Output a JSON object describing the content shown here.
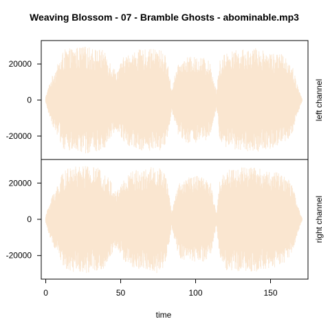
{
  "chart_data": {
    "type": "area",
    "title": "Weaving Blossom - 07 - Bramble Ghosts - abominable.mp3",
    "xlabel": "time",
    "xlim": [
      -3,
      175
    ],
    "x_ticks": [
      0,
      50,
      100,
      150
    ],
    "x_tick_labels": [
      "0",
      "50",
      "100",
      "150"
    ],
    "ylim": [
      -33000,
      33000
    ],
    "y_ticks": [
      20000,
      0,
      -20000
    ],
    "y_tick_labels": [
      "20000",
      "0",
      "-20000"
    ],
    "grid": false,
    "legend": "none",
    "colors": {
      "wave": "#fae6d0",
      "axis": "#000000"
    },
    "duration": 171,
    "panels": [
      {
        "name": "left channel",
        "envelope": {
          "t": [
            0,
            2,
            5,
            8,
            12,
            18,
            25,
            32,
            38,
            43,
            47,
            52,
            58,
            62,
            68,
            74,
            79,
            82,
            84,
            87,
            90,
            95,
            100,
            105,
            110,
            112,
            114,
            116,
            120,
            130,
            140,
            150,
            160,
            165,
            168,
            171
          ],
          "peak": [
            2000,
            8000,
            15000,
            20000,
            28000,
            29000,
            30000,
            29000,
            28000,
            22000,
            16000,
            24000,
            27000,
            28000,
            28000,
            29000,
            27000,
            18000,
            6000,
            17000,
            22000,
            24000,
            24000,
            24000,
            21000,
            12000,
            5000,
            22000,
            27000,
            28000,
            29000,
            27000,
            25000,
            18000,
            8000,
            1000
          ]
        }
      },
      {
        "name": "right channel",
        "envelope": {
          "t": [
            0,
            2,
            5,
            8,
            12,
            18,
            25,
            32,
            38,
            43,
            47,
            52,
            58,
            62,
            68,
            74,
            79,
            82,
            84,
            87,
            90,
            95,
            100,
            105,
            110,
            112,
            114,
            116,
            120,
            130,
            140,
            150,
            160,
            165,
            168,
            171
          ],
          "peak": [
            2000,
            8000,
            15000,
            20000,
            27000,
            29000,
            30000,
            29000,
            28000,
            22000,
            15000,
            23000,
            27000,
            28000,
            28000,
            30000,
            27000,
            17000,
            4000,
            16000,
            22000,
            23000,
            24000,
            24000,
            21000,
            11000,
            4000,
            21000,
            28000,
            29000,
            29000,
            27000,
            25000,
            18000,
            8000,
            1000
          ]
        }
      }
    ]
  }
}
